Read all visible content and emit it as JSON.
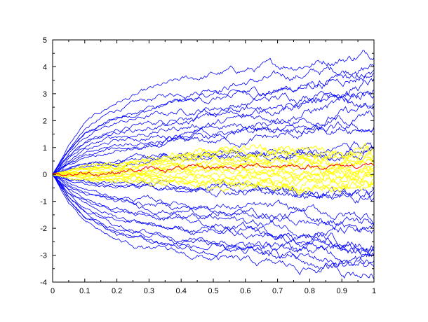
{
  "chart_data": {
    "type": "line",
    "title": "",
    "xlabel": "",
    "ylabel": "",
    "xlim": [
      0,
      1
    ],
    "ylim": [
      -4,
      5
    ],
    "grid": false,
    "legend": "none",
    "x_ticks": [
      "0",
      "0.1",
      "0.2",
      "0.3",
      "0.4",
      "0.5",
      "0.6",
      "0.7",
      "0.8",
      "0.9",
      "1"
    ],
    "y_ticks": [
      "5",
      "4",
      "3",
      "2",
      "1",
      "0",
      "-1",
      "-2",
      "-3",
      "-4"
    ],
    "colors": {
      "paths": "#0000ff",
      "band": "#ffff00",
      "mean": "#ff0000",
      "axis": "#000000"
    },
    "series": [
      {
        "values_x": [
          0,
          0.05,
          0.1,
          0.2,
          0.3,
          0.4,
          0.5,
          0.6,
          0.7,
          0.8,
          0.9,
          1
        ],
        "values": [
          0,
          0.95,
          1.7,
          2.4,
          2.75,
          3.05,
          3.3,
          3.45,
          3.55,
          3.75,
          3.9,
          4.05
        ]
      },
      {
        "values_x": [
          0,
          0.05,
          0.1,
          0.2,
          0.3,
          0.4,
          0.5,
          0.6,
          0.7,
          0.8,
          0.9,
          1
        ],
        "values": [
          0,
          0.8,
          1.4,
          1.9,
          2.15,
          2.35,
          2.5,
          2.65,
          2.8,
          3.0,
          3.2,
          3.4
        ]
      },
      {
        "values_x": [
          0,
          0.05,
          0.1,
          0.2,
          0.3,
          0.4,
          0.5,
          0.6,
          0.7,
          0.8,
          0.9,
          1
        ],
        "values": [
          0,
          0.6,
          1.0,
          1.4,
          1.55,
          1.75,
          1.9,
          2.05,
          2.2,
          2.4,
          2.55,
          2.7
        ]
      },
      {
        "values_x": [
          0,
          0.05,
          0.1,
          0.2,
          0.3,
          0.4,
          0.5,
          0.6,
          0.7,
          0.8,
          0.9,
          1
        ],
        "values": [
          0,
          0.4,
          0.65,
          0.95,
          1.1,
          1.25,
          1.35,
          1.45,
          1.55,
          1.7,
          1.8,
          1.9
        ]
      },
      {
        "values_x": [
          0,
          0.05,
          0.1,
          0.2,
          0.3,
          0.4,
          0.5,
          0.6,
          0.7,
          0.8,
          0.9,
          1
        ],
        "values": [
          0,
          0.2,
          0.35,
          0.5,
          0.6,
          0.65,
          0.7,
          0.75,
          0.75,
          0.8,
          0.85,
          0.9
        ]
      },
      {
        "values_x": [
          0,
          0.05,
          0.1,
          0.2,
          0.3,
          0.4,
          0.5,
          0.6,
          0.7,
          0.8,
          0.9,
          1
        ],
        "values": [
          0,
          -0.2,
          -0.3,
          -0.4,
          -0.45,
          -0.5,
          -0.5,
          -0.55,
          -0.6,
          -0.65,
          -0.7,
          -0.7
        ]
      },
      {
        "values_x": [
          0,
          0.05,
          0.1,
          0.2,
          0.3,
          0.4,
          0.5,
          0.6,
          0.7,
          0.8,
          0.9,
          1
        ],
        "values": [
          0,
          -0.4,
          -0.65,
          -0.95,
          -1.1,
          -1.2,
          -1.3,
          -1.4,
          -1.5,
          -1.6,
          -1.7,
          -1.8
        ]
      },
      {
        "values_x": [
          0,
          0.05,
          0.1,
          0.2,
          0.3,
          0.4,
          0.5,
          0.6,
          0.7,
          0.8,
          0.9,
          1
        ],
        "values": [
          0,
          -0.6,
          -1.0,
          -1.4,
          -1.6,
          -1.75,
          -1.9,
          -2.0,
          -2.15,
          -2.3,
          -2.45,
          -2.55
        ]
      },
      {
        "values_x": [
          0,
          0.05,
          0.1,
          0.2,
          0.3,
          0.4,
          0.5,
          0.6,
          0.7,
          0.8,
          0.9,
          1
        ],
        "values": [
          0,
          -0.8,
          -1.35,
          -1.9,
          -2.15,
          -2.35,
          -2.5,
          -2.6,
          -2.75,
          -2.85,
          -2.95,
          -3.05
        ]
      },
      {
        "values_x": [
          0,
          0.05,
          0.1,
          0.2,
          0.3,
          0.4,
          0.5,
          0.6,
          0.7,
          0.8,
          0.9,
          1
        ],
        "values": [
          0,
          -0.95,
          -1.6,
          -2.2,
          -2.45,
          -2.65,
          -2.8,
          -2.95,
          -3.05,
          -3.1,
          -3.2,
          -3.25
        ]
      }
    ],
    "band": {
      "values_x": [
        0,
        0.1,
        0.2,
        0.3,
        0.4,
        0.5,
        0.6,
        0.7,
        0.8,
        0.9,
        1
      ],
      "upper": [
        0,
        0.3,
        0.4,
        0.55,
        0.8,
        0.95,
        1.0,
        0.95,
        0.9,
        0.85,
        0.9
      ],
      "lower": [
        0,
        -0.2,
        -0.25,
        -0.3,
        -0.35,
        -0.45,
        -0.5,
        -0.55,
        -0.6,
        -0.5,
        -0.45
      ]
    },
    "mean": {
      "values_x": [
        0,
        0.1,
        0.2,
        0.3,
        0.4,
        0.5,
        0.6,
        0.7,
        0.8,
        0.9,
        1
      ],
      "values": [
        0,
        0.05,
        0.12,
        0.18,
        0.2,
        0.25,
        0.3,
        0.35,
        0.3,
        0.32,
        0.35
      ]
    }
  }
}
